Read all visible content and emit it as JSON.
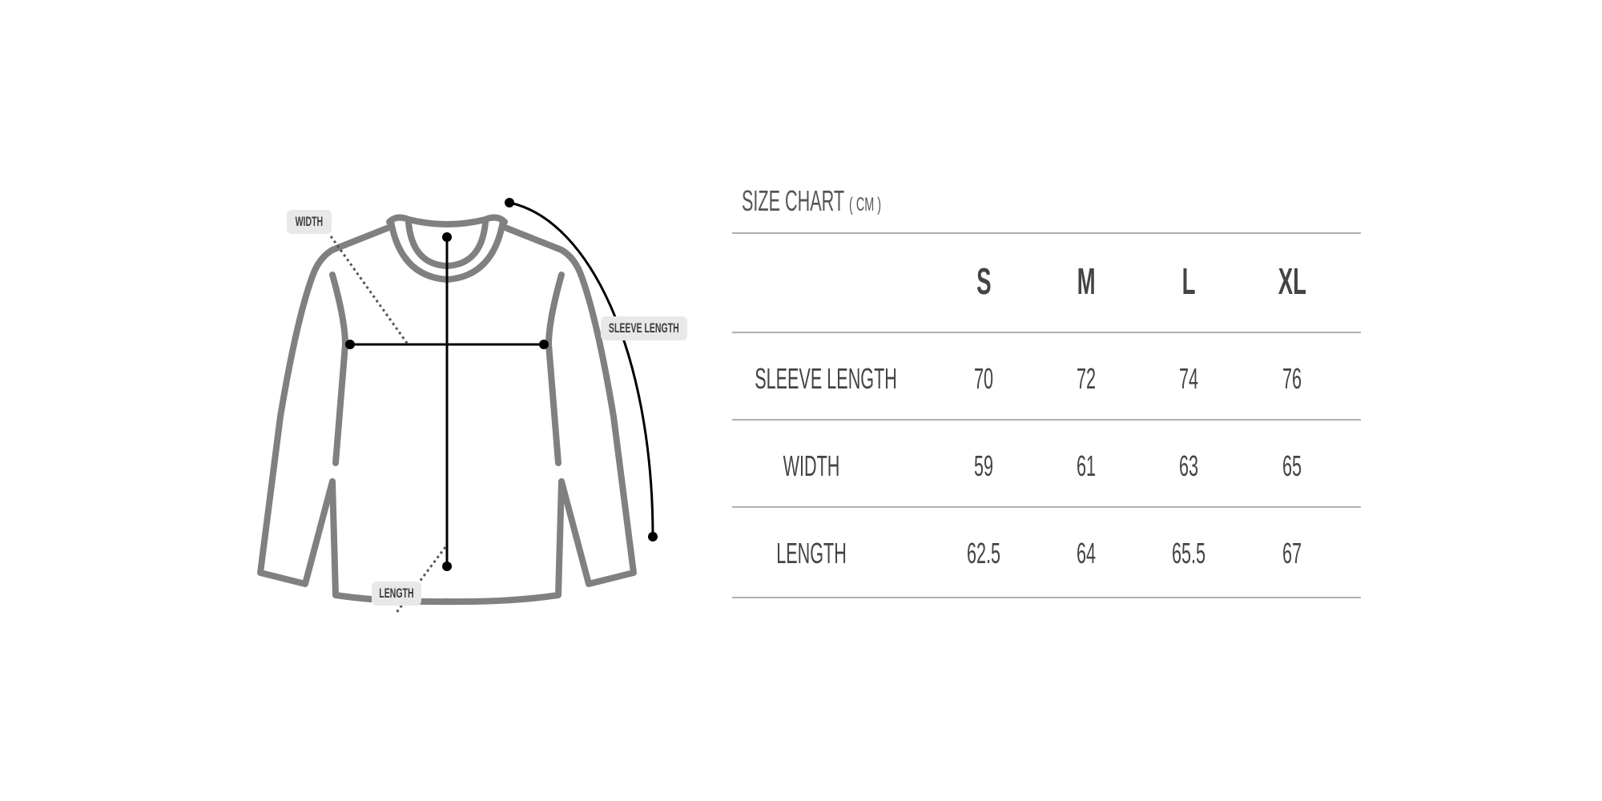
{
  "diagram": {
    "labels": {
      "width": "WIDTH",
      "sleeve_length": "SLEEVE LENGTH",
      "length": "LENGTH"
    },
    "colors": {
      "outline": "#808080",
      "measure": "#000000",
      "label_bg": "#e8e8e8"
    }
  },
  "table": {
    "title": "SIZE CHART",
    "unit": "( CM )",
    "sizes": [
      "S",
      "M",
      "L",
      "XL"
    ],
    "rows": [
      {
        "label": "SLEEVE LENGTH",
        "values": [
          "70",
          "72",
          "74",
          "76"
        ]
      },
      {
        "label": "WIDTH",
        "values": [
          "59",
          "61",
          "63",
          "65"
        ]
      },
      {
        "label": "LENGTH",
        "values": [
          "62.5",
          "64",
          "65.5",
          "67"
        ]
      }
    ]
  }
}
